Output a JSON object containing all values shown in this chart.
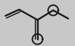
{
  "bg_color": "#c8c8c8",
  "line_color": "#1a1a1a",
  "lw": 1.8,
  "lw_thin": 1.2,
  "figsize": [
    1.1,
    0.67
  ],
  "dpi": 100,
  "xlim": [
    0,
    110
  ],
  "ylim": [
    0,
    67
  ],
  "C1": [
    8,
    44
  ],
  "C2": [
    28,
    53
  ],
  "C3": [
    55,
    38
  ],
  "Oc": [
    55,
    10
  ],
  "Oe": [
    78,
    52
  ],
  "Cm": [
    100,
    40
  ],
  "dbl_off_vinyl": 3.5,
  "dbl_off_carbonyl": 3.5,
  "oval_r": 7.5,
  "oval_lw": 1.5
}
